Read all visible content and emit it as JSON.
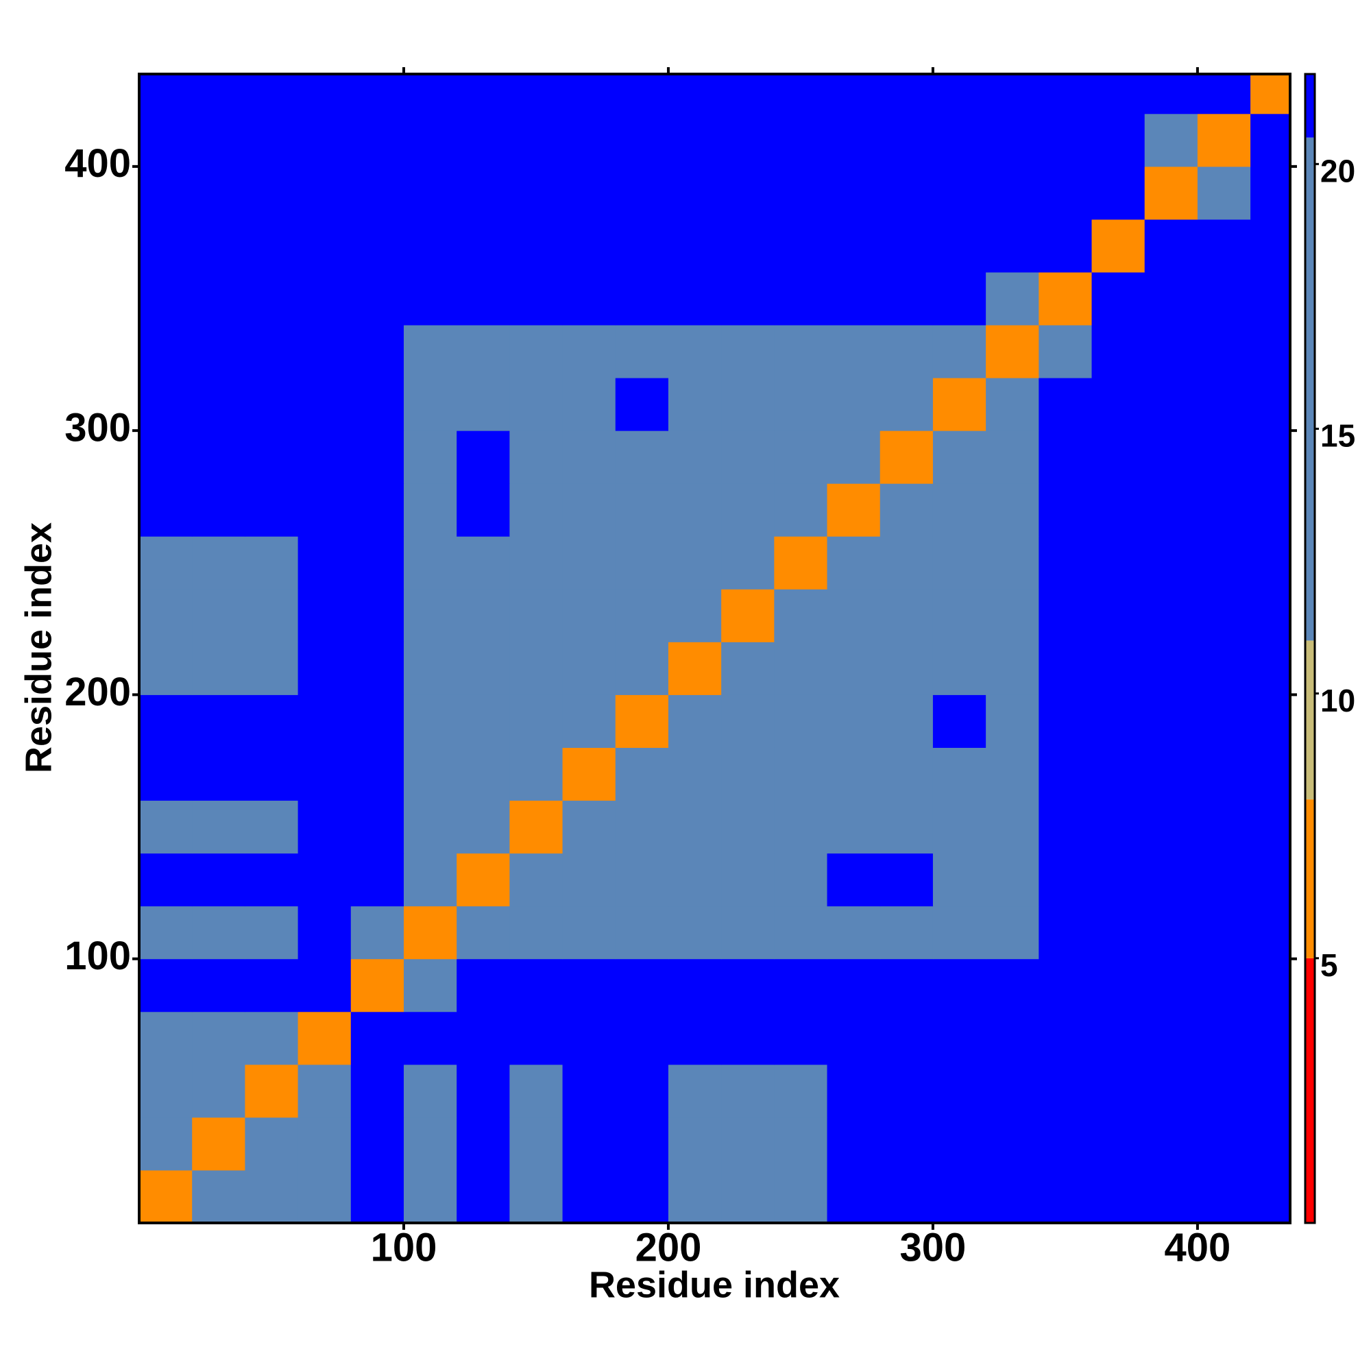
{
  "chart_data": {
    "type": "heatmap",
    "x_label": "Residue index",
    "y_label": "Residue index",
    "bins": [
      0,
      20,
      40,
      60,
      80,
      100,
      120,
      140,
      160,
      180,
      200,
      220,
      240,
      260,
      280,
      300,
      320,
      340,
      360,
      380,
      400,
      420,
      435
    ],
    "values": [
      [
        6,
        11,
        13,
        15,
        21,
        19,
        21,
        19,
        21,
        21,
        19,
        19,
        19,
        21,
        21,
        21,
        21,
        21,
        21,
        21,
        21,
        21
      ],
      [
        11,
        6,
        11,
        13,
        21,
        19,
        21,
        19,
        21,
        21,
        19,
        19,
        19,
        21,
        21,
        21,
        21,
        21,
        21,
        21,
        21,
        21
      ],
      [
        13,
        11,
        6,
        11,
        21,
        19,
        21,
        19,
        21,
        21,
        19,
        19,
        19,
        21,
        21,
        21,
        21,
        21,
        21,
        21,
        21,
        21
      ],
      [
        15,
        13,
        11,
        6,
        21,
        21,
        21,
        21,
        21,
        21,
        21,
        21,
        21,
        21,
        21,
        21,
        21,
        21,
        21,
        21,
        21,
        21
      ],
      [
        21,
        21,
        21,
        21,
        6,
        13,
        21,
        21,
        21,
        21,
        21,
        21,
        21,
        21,
        21,
        21,
        21,
        21,
        21,
        21,
        21,
        21
      ],
      [
        19,
        19,
        19,
        21,
        13,
        6,
        11,
        11,
        15,
        15,
        15,
        15,
        15,
        15,
        15,
        15,
        15,
        21,
        21,
        21,
        21,
        21
      ],
      [
        21,
        21,
        21,
        21,
        21,
        11,
        6,
        11,
        11,
        15,
        15,
        15,
        15,
        21,
        21,
        15,
        15,
        21,
        21,
        21,
        21,
        21
      ],
      [
        19,
        19,
        19,
        21,
        21,
        11,
        11,
        6,
        11,
        15,
        15,
        15,
        15,
        15,
        15,
        15,
        15,
        21,
        21,
        21,
        21,
        21
      ],
      [
        21,
        21,
        21,
        21,
        21,
        15,
        11,
        11,
        6,
        11,
        15,
        15,
        15,
        15,
        15,
        15,
        15,
        21,
        21,
        21,
        21,
        21
      ],
      [
        21,
        21,
        21,
        21,
        21,
        15,
        15,
        15,
        11,
        6,
        11,
        15,
        15,
        15,
        15,
        21,
        15,
        21,
        21,
        21,
        21,
        21
      ],
      [
        19,
        19,
        19,
        21,
        21,
        15,
        15,
        15,
        15,
        11,
        6,
        11,
        11,
        15,
        15,
        15,
        15,
        21,
        21,
        21,
        21,
        21
      ],
      [
        19,
        19,
        19,
        21,
        21,
        15,
        15,
        15,
        15,
        15,
        11,
        6,
        11,
        15,
        15,
        15,
        15,
        21,
        21,
        21,
        21,
        21
      ],
      [
        19,
        19,
        19,
        21,
        21,
        15,
        15,
        15,
        15,
        15,
        11,
        11,
        6,
        11,
        11,
        15,
        15,
        21,
        21,
        21,
        21,
        21
      ],
      [
        21,
        21,
        21,
        21,
        21,
        15,
        21,
        15,
        15,
        15,
        15,
        15,
        11,
        6,
        11,
        15,
        15,
        21,
        21,
        21,
        21,
        21
      ],
      [
        21,
        21,
        21,
        21,
        21,
        15,
        21,
        15,
        15,
        15,
        15,
        15,
        11,
        11,
        6,
        11,
        15,
        21,
        21,
        21,
        21,
        21
      ],
      [
        21,
        21,
        21,
        21,
        21,
        15,
        15,
        15,
        15,
        21,
        15,
        15,
        15,
        15,
        11,
        6,
        11,
        21,
        21,
        21,
        21,
        21
      ],
      [
        21,
        21,
        21,
        21,
        21,
        15,
        15,
        15,
        15,
        15,
        15,
        15,
        15,
        15,
        15,
        11,
        6,
        14,
        21,
        21,
        21,
        21
      ],
      [
        21,
        21,
        21,
        21,
        21,
        21,
        21,
        21,
        21,
        21,
        21,
        21,
        21,
        21,
        21,
        21,
        14,
        6,
        21,
        21,
        21,
        21
      ],
      [
        21,
        21,
        21,
        21,
        21,
        21,
        21,
        21,
        21,
        21,
        21,
        21,
        21,
        21,
        21,
        21,
        21,
        21,
        6,
        21,
        21,
        21
      ],
      [
        21,
        21,
        21,
        21,
        21,
        21,
        21,
        21,
        21,
        21,
        21,
        21,
        21,
        21,
        21,
        21,
        21,
        21,
        21,
        6,
        13,
        21
      ],
      [
        21,
        21,
        21,
        21,
        21,
        21,
        21,
        21,
        21,
        21,
        21,
        21,
        21,
        21,
        21,
        21,
        21,
        21,
        21,
        13,
        6,
        21
      ],
      [
        21,
        21,
        21,
        21,
        21,
        21,
        21,
        21,
        21,
        21,
        21,
        21,
        21,
        21,
        21,
        21,
        21,
        21,
        21,
        21,
        21,
        6
      ]
    ],
    "xlim": [
      0,
      435
    ],
    "ylim": [
      0,
      435
    ],
    "xticks": [
      100,
      200,
      300,
      400
    ],
    "yticks": [
      100,
      200,
      300,
      400
    ],
    "colorbar": {
      "lim": [
        0,
        21.7
      ],
      "ticks": [
        5,
        10,
        15,
        20
      ],
      "stops": [
        {
          "value": 0,
          "color": "#ff0000"
        },
        {
          "value": 5,
          "color": "#ff8c00"
        },
        {
          "value": 8,
          "color": "#c8bc78"
        },
        {
          "value": 11,
          "color": "#5b86b8"
        },
        {
          "value": 20.5,
          "color": "#0000ff"
        }
      ]
    }
  }
}
